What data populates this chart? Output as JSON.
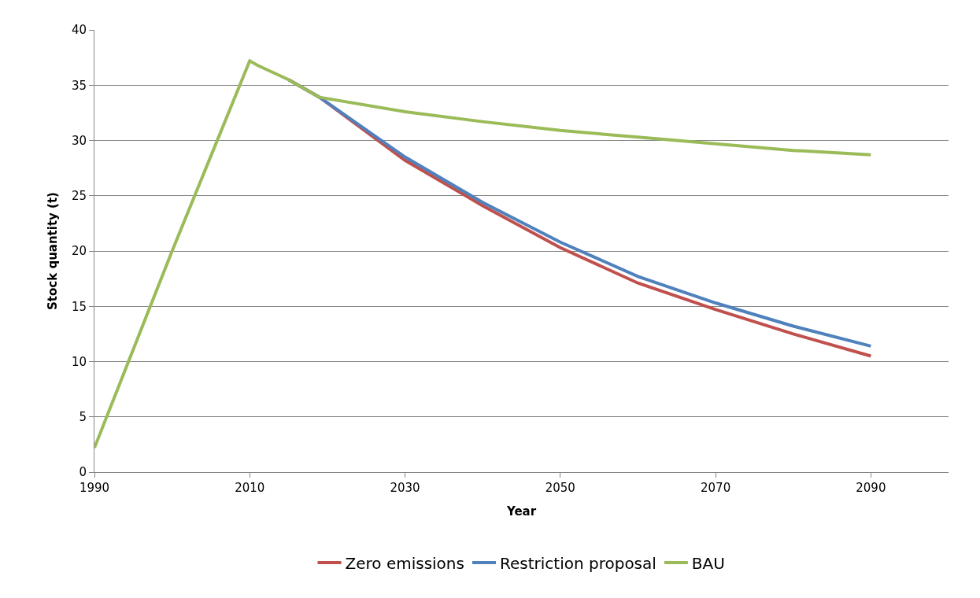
{
  "chart_data": {
    "type": "line",
    "xlabel": "Year",
    "ylabel": "Stock quantity (t)",
    "xlim": [
      1990,
      2100
    ],
    "xticks": [
      1990,
      2010,
      2030,
      2050,
      2070,
      2090
    ],
    "ylim": [
      0,
      40
    ],
    "yticks": [
      0,
      5,
      10,
      15,
      20,
      25,
      30,
      35,
      40
    ],
    "grid": "y",
    "legend": "bottom",
    "marker": "none",
    "line_style": "solid",
    "x": [
      1990,
      2000,
      2010,
      2011,
      2015,
      2019,
      2030,
      2040,
      2050,
      2060,
      2070,
      2080,
      2090
    ],
    "series": [
      {
        "name": "Zero emissions",
        "color": "#c0504d",
        "values": [
          null,
          null,
          null,
          null,
          35.5,
          33.9,
          28.2,
          24.1,
          20.3,
          17.1,
          14.7,
          12.5,
          10.5
        ]
      },
      {
        "name": "Restriction proposal",
        "color": "#4f81bd",
        "values": [
          null,
          null,
          null,
          null,
          35.5,
          33.9,
          28.5,
          24.4,
          20.8,
          17.7,
          15.3,
          13.2,
          11.4
        ]
      },
      {
        "name": "BAU",
        "color": "#9bbb59",
        "values": [
          2.2,
          20,
          37.2,
          36.8,
          35.5,
          33.9,
          32.6,
          31.7,
          30.9,
          30.3,
          29.7,
          29.1,
          28.7
        ]
      }
    ]
  }
}
